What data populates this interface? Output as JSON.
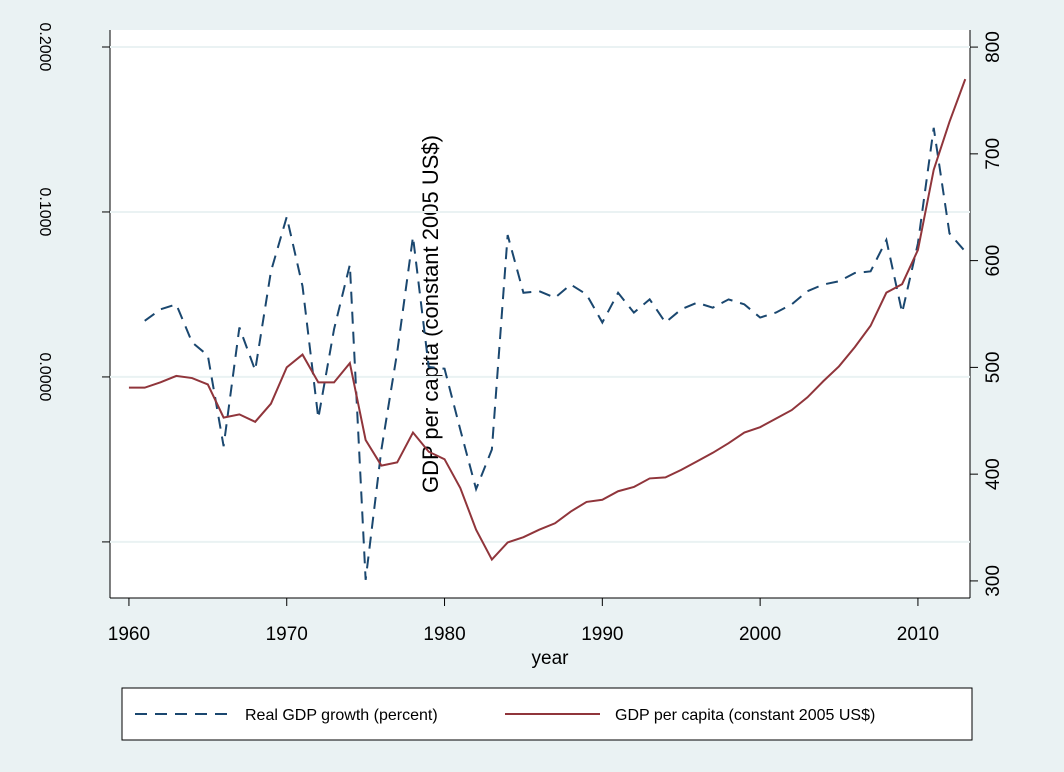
{
  "chart_data": {
    "type": "line",
    "y_axis_label": "GDP per capita (constant 2005 US$)",
    "x_axis_label": "year",
    "xlim": [
      1958.8,
      2013.3
    ],
    "xticks": [
      1960,
      1970,
      1980,
      1990,
      2000,
      2010
    ],
    "ylim": [
      -0.134,
      0.2103
    ],
    "yticks": [
      {
        "value": -0.1,
        "label": null
      },
      {
        "value": 0,
        "label": "0.0000"
      },
      {
        "value": 0.1,
        "label": "0.1000"
      },
      {
        "value": 0.2,
        "label": "0.2000"
      }
    ],
    "y2lim": [
      284,
      816
    ],
    "y2ticks": [
      300,
      400,
      500,
      600,
      700,
      800
    ],
    "grid": true,
    "legend": "bottom",
    "x": [
      1960,
      1961,
      1962,
      1963,
      1964,
      1965,
      1966,
      1967,
      1968,
      1969,
      1970,
      1971,
      1972,
      1973,
      1974,
      1975,
      1976,
      1977,
      1978,
      1979,
      1980,
      1981,
      1982,
      1983,
      1984,
      1985,
      1986,
      1987,
      1988,
      1989,
      1990,
      1991,
      1992,
      1993,
      1994,
      1995,
      1996,
      1997,
      1998,
      1999,
      2000,
      2001,
      2002,
      2003,
      2004,
      2005,
      2006,
      2007,
      2008,
      2009,
      2010,
      2011,
      2012,
      2013
    ],
    "series": [
      {
        "name": "Real GDP growth (percent)",
        "color": "#1a476f",
        "dash": true,
        "values": [
          null,
          0.034,
          0.041,
          0.044,
          0.021,
          0.013,
          -0.042,
          0.03,
          0.004,
          0.064,
          0.097,
          0.055,
          -0.025,
          0.029,
          0.068,
          -0.123,
          -0.044,
          0.015,
          0.085,
          0.006,
          0.005,
          -0.032,
          -0.068,
          -0.044,
          0.086,
          0.051,
          0.052,
          0.048,
          0.056,
          0.05,
          0.033,
          0.051,
          0.039,
          0.047,
          0.033,
          0.041,
          0.045,
          0.042,
          0.047,
          0.044,
          0.036,
          0.039,
          0.044,
          0.052,
          0.056,
          0.058,
          0.063,
          0.064,
          0.083,
          0.039,
          0.081,
          0.151,
          0.087,
          0.076
        ]
      },
      {
        "name": "GDP per capita (constant 2005 US$)",
        "color": "#90353b",
        "dash": false,
        "axis": "y2",
        "values": [
          481,
          481,
          486,
          492,
          490,
          484,
          453,
          456,
          449,
          466,
          500,
          512,
          486,
          486,
          504,
          432,
          408,
          411,
          439,
          421,
          414,
          387,
          348,
          320,
          336,
          341,
          348,
          354,
          365,
          374,
          376,
          384,
          388,
          396,
          397,
          404,
          412,
          420,
          429,
          439,
          444,
          452,
          460,
          472,
          487,
          501,
          519,
          539,
          570,
          578,
          610,
          685,
          730,
          770
        ]
      }
    ]
  }
}
